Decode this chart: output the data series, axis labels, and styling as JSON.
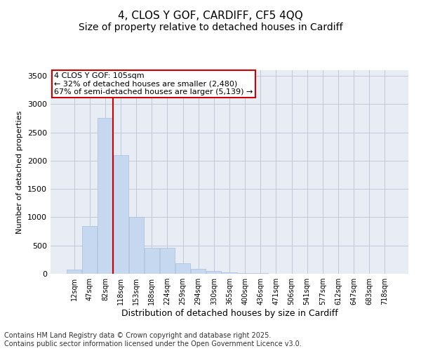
{
  "title1": "4, CLOS Y GOF, CARDIFF, CF5 4QQ",
  "title2": "Size of property relative to detached houses in Cardiff",
  "xlabel": "Distribution of detached houses by size in Cardiff",
  "ylabel": "Number of detached properties",
  "categories": [
    "12sqm",
    "47sqm",
    "82sqm",
    "118sqm",
    "153sqm",
    "188sqm",
    "224sqm",
    "259sqm",
    "294sqm",
    "330sqm",
    "365sqm",
    "400sqm",
    "436sqm",
    "471sqm",
    "506sqm",
    "541sqm",
    "577sqm",
    "612sqm",
    "647sqm",
    "683sqm",
    "718sqm"
  ],
  "values": [
    75,
    840,
    2750,
    2100,
    1010,
    460,
    460,
    190,
    90,
    55,
    30,
    15,
    8,
    4,
    2,
    1,
    0,
    0,
    0,
    0,
    0
  ],
  "bar_color": "#c5d8f0",
  "bar_edge_color": "#a8bfd8",
  "vline_color": "#cc0000",
  "vline_x_index": 2.5,
  "annotation_box_text": "4 CLOS Y GOF: 105sqm\n← 32% of detached houses are smaller (2,480)\n67% of semi-detached houses are larger (5,139) →",
  "box_edge_color": "#cc0000",
  "ylim": [
    0,
    3600
  ],
  "yticks": [
    0,
    500,
    1000,
    1500,
    2000,
    2500,
    3000,
    3500
  ],
  "grid_color": "#c0c8d8",
  "background_color": "#e8edf5",
  "footnote": "Contains HM Land Registry data © Crown copyright and database right 2025.\nContains public sector information licensed under the Open Government Licence v3.0.",
  "title_fontsize": 11,
  "subtitle_fontsize": 10,
  "annotation_fontsize": 8,
  "xlabel_fontsize": 9,
  "ylabel_fontsize": 8,
  "footnote_fontsize": 7,
  "tick_fontsize": 7,
  "ytick_fontsize": 8
}
